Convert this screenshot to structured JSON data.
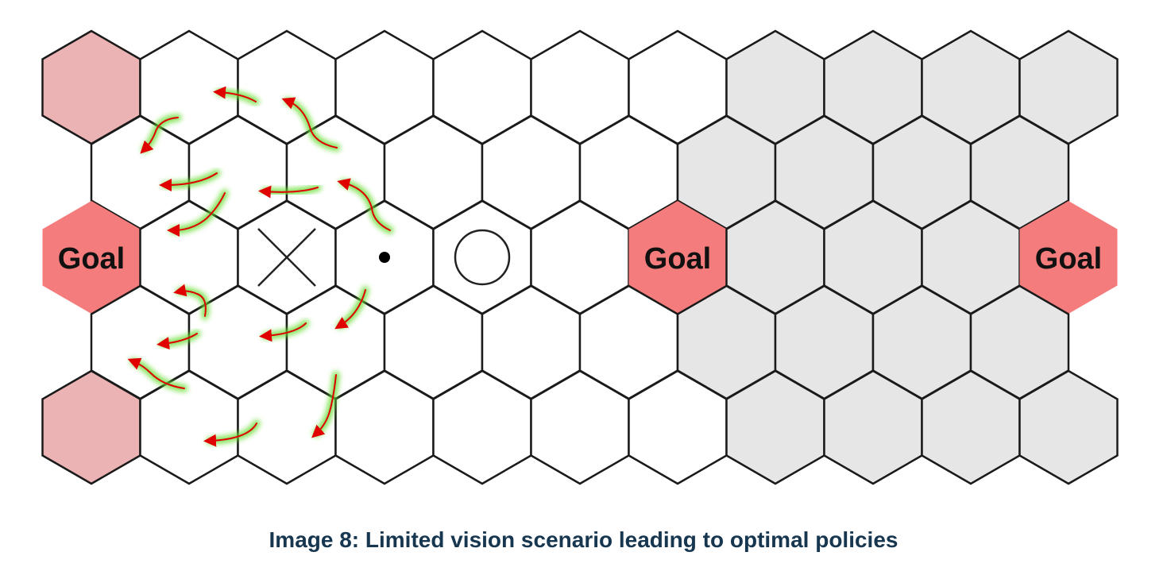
{
  "board": {
    "goals": [
      {
        "label": "Goal"
      },
      {
        "label": "Goal"
      },
      {
        "label": "Goal"
      }
    ],
    "palette": {
      "goal_fill": "#f47c7c",
      "corner_goal_fill": "#ebb3b3",
      "hidden_fill": "#e6e6e6",
      "visible_fill": "#ffffff",
      "stroke": "#1a1a1a",
      "arrow_color": "#e00000",
      "arrow_glow": "#66dd33"
    },
    "markers": {
      "x_mark": "cross-icon",
      "agent": "dot-icon",
      "o_mark": "circle-icon"
    }
  },
  "caption": "Image 8: Limited vision scenario leading to optimal policies"
}
